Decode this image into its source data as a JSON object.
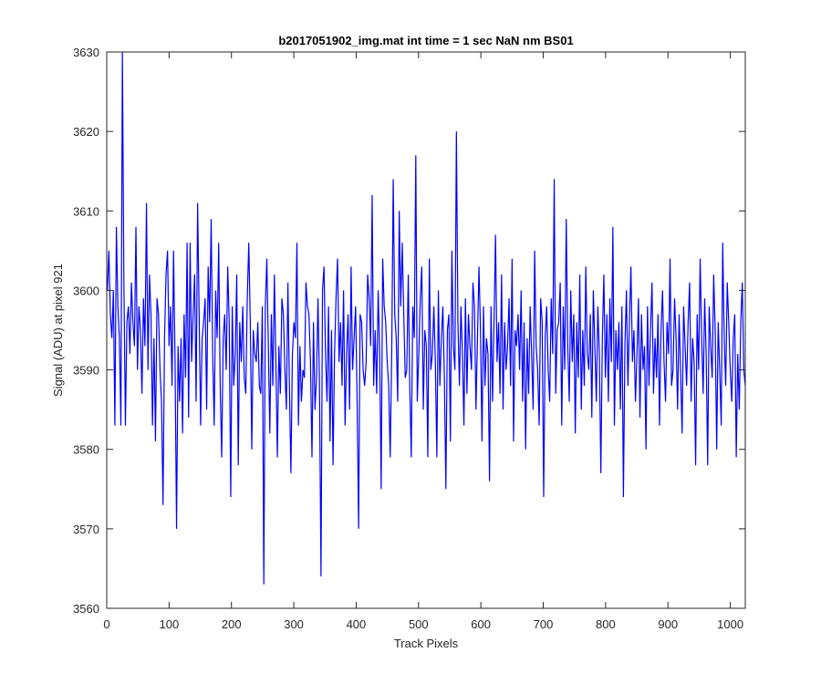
{
  "chart_data": {
    "type": "line",
    "title": "b2017051902_img.mat int time = 1 sec  NaN nm BS01",
    "xlabel": "Track Pixels",
    "ylabel": "Signal (ADU) at pixel 921",
    "xlim": [
      0,
      1024
    ],
    "ylim": [
      3560,
      3630
    ],
    "xticks": [
      0,
      100,
      200,
      300,
      400,
      500,
      600,
      700,
      800,
      900,
      1000
    ],
    "yticks": [
      3560,
      3570,
      3580,
      3590,
      3600,
      3610,
      3620,
      3630
    ],
    "grid": false,
    "line_color": "#0000ff",
    "series": [
      {
        "x_start": 1,
        "x_step": 1,
        "mean": 3593.2,
        "std": 5.2,
        "noise": "approximately gaussian frame-to-frame noise",
        "values": [
          3600,
          3605,
          3597,
          3594,
          3600,
          3583,
          3608,
          3598,
          3594,
          3583,
          3630,
          3601,
          3583,
          3596,
          3598,
          3592,
          3601,
          3596,
          3593,
          3608,
          3590,
          3598,
          3595,
          3587,
          3599,
          3593,
          3611,
          3590,
          3602,
          3597,
          3583,
          3594,
          3581,
          3599,
          3597,
          3590,
          3586,
          3573,
          3594,
          3602,
          3605,
          3593,
          3598,
          3588,
          3605,
          3591,
          3570,
          3593,
          3586,
          3594,
          3582,
          3597,
          3589,
          3606,
          3584,
          3606,
          3591,
          3597,
          3602,
          3586,
          3611,
          3597,
          3583,
          3594,
          3596,
          3599,
          3585,
          3603,
          3596,
          3609,
          3592,
          3583,
          3600,
          3594,
          3606,
          3588,
          3579,
          3594,
          3597,
          3590,
          3603,
          3596,
          3574,
          3598,
          3588,
          3592,
          3602,
          3578,
          3596,
          3591,
          3598,
          3589,
          3587,
          3599,
          3606,
          3596,
          3580,
          3595,
          3592,
          3591,
          3596,
          3588,
          3587,
          3598,
          3563,
          3598,
          3604,
          3593,
          3582,
          3597,
          3588,
          3602,
          3591,
          3579,
          3593,
          3587,
          3599,
          3597,
          3590,
          3585,
          3601,
          3588,
          3577,
          3592,
          3596,
          3594,
          3606,
          3583,
          3593,
          3586,
          3590,
          3589,
          3601,
          3598,
          3597,
          3591,
          3579,
          3596,
          3585,
          3589,
          3599,
          3588,
          3564,
          3600,
          3603,
          3592,
          3586,
          3598,
          3581,
          3595,
          3578,
          3592,
          3599,
          3604,
          3591,
          3596,
          3588,
          3600,
          3583,
          3592,
          3597,
          3585,
          3603,
          3590,
          3594,
          3598,
          3586,
          3570,
          3597,
          3596,
          3590,
          3588,
          3591,
          3602,
          3599,
          3593,
          3612,
          3588,
          3595,
          3587,
          3600,
          3592,
          3575,
          3604,
          3598,
          3596,
          3591,
          3588,
          3579,
          3592,
          3614,
          3597,
          3594,
          3586,
          3610,
          3598,
          3606,
          3597,
          3589,
          3590,
          3602,
          3588,
          3579,
          3598,
          3594,
          3617,
          3586,
          3592,
          3599,
          3603,
          3585,
          3595,
          3593,
          3579,
          3604,
          3590,
          3592,
          3598,
          3591,
          3579,
          3600,
          3588,
          3594,
          3598,
          3589,
          3575,
          3595,
          3597,
          3581,
          3605,
          3593,
          3590,
          3620,
          3596,
          3588,
          3598,
          3592,
          3583,
          3599,
          3587,
          3597,
          3593,
          3590,
          3601,
          3598,
          3585,
          3594,
          3603,
          3595,
          3581,
          3598,
          3588,
          3594,
          3592,
          3576,
          3598,
          3586,
          3596,
          3607,
          3591,
          3596,
          3587,
          3602,
          3585,
          3596,
          3590,
          3593,
          3599,
          3588,
          3604,
          3581,
          3595,
          3593,
          3597,
          3590,
          3600,
          3586,
          3596,
          3580,
          3594,
          3587,
          3598,
          3592,
          3585,
          3605,
          3593,
          3590,
          3583,
          3599,
          3596,
          3574,
          3594,
          3598,
          3590,
          3586,
          3599,
          3592,
          3614,
          3587,
          3595,
          3596,
          3601,
          3583,
          3598,
          3590,
          3609,
          3593,
          3586,
          3600,
          3591,
          3597,
          3582,
          3596,
          3589,
          3602,
          3585,
          3595,
          3588,
          3603,
          3592,
          3590,
          3597,
          3584,
          3600,
          3593,
          3586,
          3598,
          3592,
          3577,
          3594,
          3602,
          3589,
          3597,
          3586,
          3599,
          3591,
          3608,
          3583,
          3595,
          3590,
          3596,
          3585,
          3598,
          3574,
          3593,
          3600,
          3588,
          3596,
          3603,
          3591,
          3595,
          3586,
          3592,
          3599,
          3584,
          3597,
          3590,
          3593,
          3580,
          3598,
          3588,
          3595,
          3601,
          3587,
          3594,
          3589,
          3597,
          3583,
          3595,
          3600,
          3591,
          3586,
          3596,
          3592,
          3604,
          3588,
          3590,
          3599,
          3594,
          3585,
          3597,
          3590,
          3582,
          3598,
          3593,
          3588,
          3596,
          3601,
          3586,
          3594,
          3591,
          3578,
          3597,
          3590,
          3604,
          3594,
          3587,
          3599,
          3592,
          3578,
          3598,
          3593,
          3589,
          3602,
          3595,
          3580,
          3596,
          3590,
          3583,
          3606,
          3594,
          3588,
          3601,
          3596,
          3590,
          3586,
          3594,
          3597,
          3579,
          3592,
          3585,
          3596,
          3601,
          3590,
          3588
        ]
      }
    ]
  }
}
